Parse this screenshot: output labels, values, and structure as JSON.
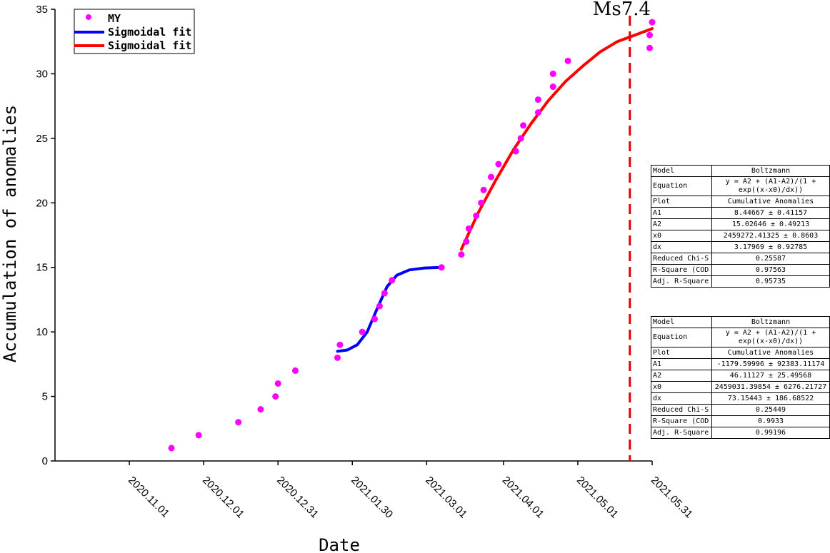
{
  "chart_data": {
    "type": "scatter",
    "xlabel": "Date",
    "ylabel": "Accumulation of anomalies",
    "xlim": [
      "2020-10-02",
      "2021-05-31"
    ],
    "ylim": [
      0,
      35
    ],
    "x_ticks": [
      "2020.11.01",
      "2020.12.01",
      "2020.12.31",
      "2021.01.30",
      "2021.03.01",
      "2021.04.01",
      "2021.05.01",
      "2021.05.31"
    ],
    "y_ticks": [
      0,
      5,
      10,
      15,
      20,
      25,
      30,
      35
    ],
    "grid": false,
    "legend_position": "top-left",
    "series": [
      {
        "name": "MY",
        "type": "scatter",
        "color": "#ff00ff",
        "points": [
          [
            "2020-11-18",
            1
          ],
          [
            "2020-11-29",
            2
          ],
          [
            "2020-12-15",
            3
          ],
          [
            "2020-12-24",
            4
          ],
          [
            "2020-12-30",
            5
          ],
          [
            "2020-12-31",
            6
          ],
          [
            "2021-01-07",
            7
          ],
          [
            "2021-01-24",
            8
          ],
          [
            "2021-01-25",
            9
          ],
          [
            "2021-02-03",
            10
          ],
          [
            "2021-02-08",
            11
          ],
          [
            "2021-02-10",
            12
          ],
          [
            "2021-02-12",
            13
          ],
          [
            "2021-02-15",
            14
          ],
          [
            "2021-03-07",
            15
          ],
          [
            "2021-03-15",
            16
          ],
          [
            "2021-03-17",
            17
          ],
          [
            "2021-03-18",
            18
          ],
          [
            "2021-03-21",
            19
          ],
          [
            "2021-03-23",
            20
          ],
          [
            "2021-03-24",
            21
          ],
          [
            "2021-03-27",
            22
          ],
          [
            "2021-03-30",
            23
          ],
          [
            "2021-04-06",
            24
          ],
          [
            "2021-04-08",
            25
          ],
          [
            "2021-04-09",
            26
          ],
          [
            "2021-04-15",
            27
          ],
          [
            "2021-04-15",
            28
          ],
          [
            "2021-04-21",
            29
          ],
          [
            "2021-04-21",
            30
          ],
          [
            "2021-04-27",
            31
          ],
          [
            "2021-05-30",
            32
          ],
          [
            "2021-05-30",
            33
          ],
          [
            "2021-05-31",
            34
          ]
        ]
      },
      {
        "name": "Sigmoidal fit",
        "type": "line",
        "color": "#0000ff",
        "points": [
          [
            "2021-01-24",
            8.5
          ],
          [
            "2021-01-28",
            8.6
          ],
          [
            "2021-02-01",
            9.0
          ],
          [
            "2021-02-05",
            10.0
          ],
          [
            "2021-02-09",
            11.8
          ],
          [
            "2021-02-13",
            13.5
          ],
          [
            "2021-02-17",
            14.4
          ],
          [
            "2021-02-22",
            14.8
          ],
          [
            "2021-02-28",
            14.95
          ],
          [
            "2021-03-07",
            15.0
          ]
        ]
      },
      {
        "name": "Sigmoidal fit",
        "type": "line",
        "color": "#ff0000",
        "points": [
          [
            "2021-03-15",
            16.4
          ],
          [
            "2021-03-22",
            19.3
          ],
          [
            "2021-03-29",
            21.8
          ],
          [
            "2021-04-05",
            24.1
          ],
          [
            "2021-04-12",
            26.1
          ],
          [
            "2021-04-19",
            27.9
          ],
          [
            "2021-04-26",
            29.4
          ],
          [
            "2021-05-03",
            30.6
          ],
          [
            "2021-05-10",
            31.7
          ],
          [
            "2021-05-17",
            32.5
          ],
          [
            "2021-05-24",
            33.0
          ],
          [
            "2021-05-31",
            33.5
          ]
        ]
      }
    ],
    "event_marker": {
      "date": "2021-05-22",
      "label": "Ms7.4",
      "color": "#e00000",
      "style": "dashed"
    }
  },
  "stats_tables": [
    {
      "rows": [
        [
          "Model",
          "Boltzmann"
        ],
        [
          "Equation",
          "y = A2 + (A1-A2)/(1 + exp((x-x0)/dx))"
        ],
        [
          "Plot",
          "Cumulative Anomalies"
        ],
        [
          "A1",
          "8.44667 ± 0.41157"
        ],
        [
          "A2",
          "15.02646 ± 0.49213"
        ],
        [
          "x0",
          "2459272.41325 ± 0.8603"
        ],
        [
          "dx",
          "3.17969 ± 0.92785"
        ],
        [
          "Reduced Chi-S",
          "0.25587"
        ],
        [
          "R-Square (COD",
          "0.97563"
        ],
        [
          "Adj. R-Square",
          "0.95735"
        ]
      ]
    },
    {
      "rows": [
        [
          "Model",
          "Boltzmann"
        ],
        [
          "Equation",
          "y = A2 + (A1-A2)/(1 + exp((x-x0)/dx))"
        ],
        [
          "Plot",
          "Cumulative Anomalies"
        ],
        [
          "A1",
          "-1179.59996 ± 92383.11174"
        ],
        [
          "A2",
          "46.11127 ± 25.49568"
        ],
        [
          "x0",
          "2459031.39854 ± 6276.21727"
        ],
        [
          "dx",
          "73.15443 ± 186.68522"
        ],
        [
          "Reduced Chi-S",
          "0.25449"
        ],
        [
          "R-Square (COD",
          "0.9933"
        ],
        [
          "Adj. R-Square",
          "0.99196"
        ]
      ]
    }
  ]
}
